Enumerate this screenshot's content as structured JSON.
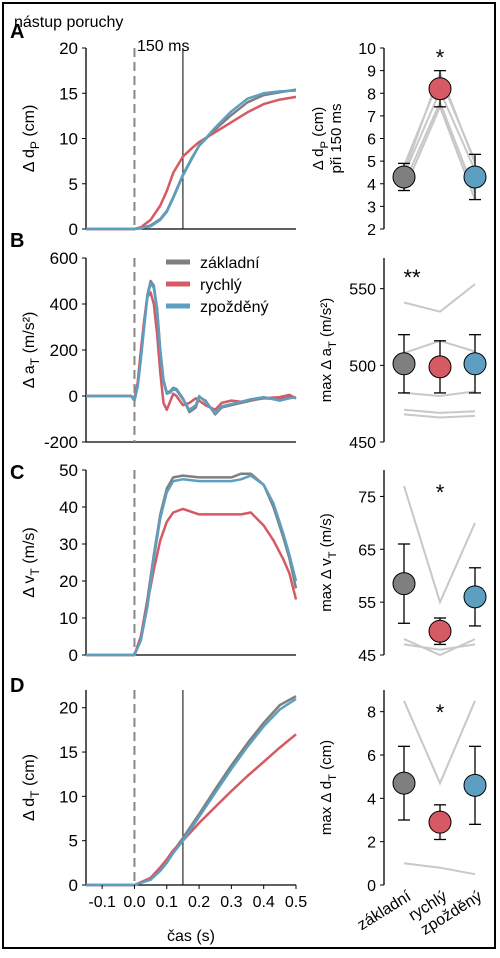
{
  "colors": {
    "zakladni": "#7f7f7f",
    "rychly": "#d55a63",
    "zpozdeny": "#5d9fc0",
    "gray_line": "#c8c8c8"
  },
  "annotations": {
    "onset": "nástup poruchy",
    "ms150": "150 ms",
    "xlabel": "čas (s)",
    "x_ticks": [
      "-0.1",
      "0.0",
      "0.1",
      "0.2",
      "0.3",
      "0.4",
      "0.5"
    ],
    "cond_labels": [
      "základní",
      "rychlý",
      "zpožděný"
    ]
  },
  "chart_data": [
    {
      "panel": "A",
      "type": "line",
      "ylabel": "Δ d",
      "ylabel_sub": "P",
      "ylabel_unit": " (cm)",
      "ylim": [
        0,
        20
      ],
      "y_ticks": [
        "0",
        "5",
        "10",
        "15",
        "20"
      ],
      "xlim": [
        -0.15,
        0.5
      ],
      "vline_dashed": 0.0,
      "vline_solid": 0.15,
      "series": [
        {
          "name": "základní",
          "color": "#7f7f7f",
          "x": [
            -0.15,
            0.0,
            0.02,
            0.05,
            0.08,
            0.1,
            0.12,
            0.15,
            0.18,
            0.2,
            0.25,
            0.3,
            0.35,
            0.4,
            0.45,
            0.5
          ],
          "y": [
            0,
            0,
            0.1,
            0.4,
            1.1,
            2.0,
            3.5,
            6.0,
            8.0,
            9.2,
            11.0,
            12.6,
            14.0,
            14.8,
            15.1,
            15.4
          ]
        },
        {
          "name": "rychlý",
          "color": "#d55a63",
          "x": [
            -0.15,
            0.0,
            0.02,
            0.05,
            0.08,
            0.1,
            0.12,
            0.15,
            0.18,
            0.2,
            0.25,
            0.3,
            0.35,
            0.4,
            0.45,
            0.5
          ],
          "y": [
            0,
            0,
            0.2,
            1.0,
            2.6,
            4.2,
            6.2,
            8.0,
            9.0,
            9.6,
            10.7,
            11.8,
            12.9,
            13.8,
            14.3,
            14.6
          ]
        },
        {
          "name": "zpožděný",
          "color": "#5d9fc0",
          "x": [
            -0.15,
            0.0,
            0.02,
            0.05,
            0.08,
            0.1,
            0.12,
            0.15,
            0.18,
            0.2,
            0.25,
            0.3,
            0.35,
            0.4,
            0.45,
            0.5
          ],
          "y": [
            0,
            0,
            0.1,
            0.3,
            1.0,
            1.9,
            3.4,
            5.9,
            7.9,
            9.2,
            11.2,
            13.0,
            14.4,
            15.0,
            15.2,
            15.3
          ]
        }
      ],
      "dot_ylabel": "Δ d",
      "dot_ylabel_sub": "P",
      "dot_ylabel_unit": " (cm)",
      "dot_ylabel2": "při 150 ms",
      "dot_ylim": [
        2,
        10
      ],
      "dot_ticks": [
        "2",
        "3",
        "4",
        "5",
        "6",
        "7",
        "8",
        "9",
        "10"
      ],
      "dot_means": [
        4.3,
        8.2,
        4.3
      ],
      "dot_errs": [
        0.6,
        0.8,
        1.0
      ],
      "dot_subjects": [
        [
          3.7,
          7.4,
          3.3
        ],
        [
          4.0,
          7.6,
          3.6
        ],
        [
          4.4,
          8.1,
          4.6
        ],
        [
          4.8,
          8.7,
          5.0
        ],
        [
          4.5,
          8.9,
          4.9
        ]
      ],
      "significance": "*"
    },
    {
      "panel": "B",
      "type": "line",
      "ylabel": "Δ a",
      "ylabel_sub": "T",
      "ylabel_unit": " (m/s²)",
      "ylim": [
        -200,
        600
      ],
      "y_ticks": [
        "-200",
        "0",
        "200",
        "400",
        "600"
      ],
      "xlim": [
        -0.15,
        0.5
      ],
      "vline_dashed": 0.0,
      "legend": "top-right",
      "series": [
        {
          "name": "základní",
          "color": "#7f7f7f",
          "x": [
            -0.15,
            -0.01,
            0.0,
            0.01,
            0.02,
            0.03,
            0.04,
            0.05,
            0.06,
            0.07,
            0.08,
            0.09,
            0.1,
            0.11,
            0.12,
            0.13,
            0.14,
            0.15,
            0.17,
            0.19,
            0.2,
            0.22,
            0.25,
            0.27,
            0.3,
            0.33,
            0.36,
            0.4,
            0.45,
            0.48,
            0.5
          ],
          "y": [
            0,
            0,
            -20,
            50,
            180,
            320,
            440,
            500,
            480,
            380,
            200,
            70,
            15,
            20,
            35,
            30,
            10,
            -10,
            -70,
            -50,
            -5,
            -20,
            -80,
            -50,
            -40,
            -30,
            -20,
            -10,
            -15,
            0,
            -10
          ]
        },
        {
          "name": "rychlý",
          "color": "#d55a63",
          "x": [
            -0.15,
            -0.01,
            0.0,
            0.01,
            0.02,
            0.03,
            0.04,
            0.05,
            0.06,
            0.07,
            0.08,
            0.09,
            0.1,
            0.11,
            0.12,
            0.13,
            0.14,
            0.15,
            0.17,
            0.19,
            0.2,
            0.22,
            0.25,
            0.27,
            0.3,
            0.33,
            0.36,
            0.4,
            0.45,
            0.48,
            0.5
          ],
          "y": [
            0,
            0,
            -10,
            60,
            200,
            330,
            430,
            450,
            400,
            270,
            100,
            -30,
            -60,
            -25,
            10,
            0,
            -20,
            -40,
            -30,
            -10,
            -20,
            -40,
            -60,
            -30,
            -20,
            -25,
            -15,
            -10,
            -5,
            5,
            -10
          ]
        },
        {
          "name": "zpožděný",
          "color": "#5d9fc0",
          "x": [
            -0.15,
            -0.01,
            0.0,
            0.01,
            0.02,
            0.03,
            0.04,
            0.05,
            0.06,
            0.07,
            0.08,
            0.09,
            0.1,
            0.11,
            0.12,
            0.13,
            0.14,
            0.15,
            0.17,
            0.19,
            0.2,
            0.22,
            0.25,
            0.27,
            0.3,
            0.33,
            0.36,
            0.4,
            0.45,
            0.48,
            0.5
          ],
          "y": [
            0,
            0,
            -20,
            40,
            160,
            300,
            430,
            490,
            470,
            370,
            190,
            60,
            10,
            15,
            30,
            25,
            5,
            -15,
            -60,
            -40,
            0,
            -25,
            -75,
            -45,
            -35,
            -25,
            -15,
            -5,
            -20,
            -10,
            -5
          ]
        }
      ],
      "dot_ylabel": "max Δ a",
      "dot_ylabel_sub": "T",
      "dot_ylabel_unit": " (m/s²)",
      "dot_ylabel2": "",
      "dot_ylim": [
        450,
        570
      ],
      "dot_ticks": [
        "450",
        "500",
        "550"
      ],
      "dot_means": [
        501,
        499,
        501
      ],
      "dot_errs": [
        19,
        17,
        19
      ],
      "dot_subjects": [
        [
          541,
          535,
          553
        ],
        [
          508,
          516,
          509
        ],
        [
          482,
          480,
          483
        ],
        [
          471,
          469,
          470
        ],
        [
          468,
          466,
          467
        ]
      ],
      "significance": "**"
    },
    {
      "panel": "C",
      "type": "line",
      "ylabel": "Δ v",
      "ylabel_sub": "T",
      "ylabel_unit": " (m/s)",
      "ylim": [
        0,
        50
      ],
      "y_ticks": [
        "0",
        "10",
        "20",
        "30",
        "40",
        "50"
      ],
      "xlim": [
        -0.15,
        0.5
      ],
      "vline_dashed": 0.0,
      "series": [
        {
          "name": "základní",
          "color": "#7f7f7f",
          "x": [
            -0.15,
            0.0,
            0.02,
            0.04,
            0.06,
            0.08,
            0.1,
            0.12,
            0.15,
            0.2,
            0.25,
            0.3,
            0.33,
            0.36,
            0.4,
            0.43,
            0.46,
            0.48,
            0.5
          ],
          "y": [
            0,
            0,
            5,
            15,
            27,
            38,
            45,
            48,
            48.5,
            48,
            48,
            48,
            49,
            49,
            46,
            40,
            32,
            26,
            18
          ]
        },
        {
          "name": "rychlý",
          "color": "#d55a63",
          "x": [
            -0.15,
            0.0,
            0.02,
            0.04,
            0.06,
            0.08,
            0.1,
            0.12,
            0.15,
            0.2,
            0.25,
            0.3,
            0.33,
            0.36,
            0.4,
            0.43,
            0.46,
            0.48,
            0.5
          ],
          "y": [
            0,
            0,
            5,
            14,
            23,
            31,
            36,
            38.5,
            39.5,
            38,
            38,
            38,
            38,
            38.5,
            35,
            31,
            26,
            22,
            15
          ]
        },
        {
          "name": "zpožděný",
          "color": "#5d9fc0",
          "x": [
            -0.15,
            0.0,
            0.02,
            0.04,
            0.06,
            0.08,
            0.1,
            0.12,
            0.15,
            0.2,
            0.25,
            0.3,
            0.33,
            0.36,
            0.4,
            0.43,
            0.46,
            0.48,
            0.5
          ],
          "y": [
            0,
            0,
            4,
            13,
            26,
            37,
            44,
            47,
            47.5,
            47,
            47,
            47,
            47.5,
            48.5,
            46,
            41,
            33,
            27,
            20
          ]
        }
      ],
      "dot_ylabel": "max Δ v",
      "dot_ylabel_sub": "T",
      "dot_ylabel_unit": " (m/s)",
      "dot_ylabel2": "",
      "dot_ylim": [
        45,
        80
      ],
      "dot_ticks": [
        "45",
        "55",
        "65",
        "75"
      ],
      "dot_means": [
        58.5,
        49.5,
        56
      ],
      "dot_errs": [
        7.5,
        2.5,
        5.5
      ],
      "dot_subjects": [
        [
          77,
          55,
          70
        ],
        [
          48,
          45,
          48
        ],
        [
          47,
          46,
          47
        ]
      ],
      "significance": "*"
    },
    {
      "panel": "D",
      "type": "line",
      "ylabel": "Δ d",
      "ylabel_sub": "T",
      "ylabel_unit": " (cm)",
      "ylim": [
        0,
        22
      ],
      "y_ticks": [
        "0",
        "5",
        "10",
        "15",
        "20"
      ],
      "xlim": [
        -0.15,
        0.5
      ],
      "vline_dashed": 0.0,
      "vline_solid": 0.15,
      "series": [
        {
          "name": "základní",
          "color": "#7f7f7f",
          "x": [
            -0.15,
            0.0,
            0.05,
            0.08,
            0.1,
            0.12,
            0.15,
            0.2,
            0.25,
            0.3,
            0.35,
            0.4,
            0.45,
            0.5
          ],
          "y": [
            0,
            0,
            0.7,
            1.8,
            2.7,
            3.8,
            5.3,
            8.0,
            10.8,
            13.5,
            16.0,
            18.3,
            20.3,
            21.3
          ]
        },
        {
          "name": "rychlý",
          "color": "#d55a63",
          "x": [
            -0.15,
            0.0,
            0.05,
            0.08,
            0.1,
            0.12,
            0.15,
            0.2,
            0.25,
            0.3,
            0.35,
            0.4,
            0.45,
            0.5
          ],
          "y": [
            0,
            0,
            0.8,
            2.0,
            2.9,
            3.9,
            5.0,
            7.0,
            8.8,
            10.6,
            12.3,
            13.9,
            15.5,
            17.0
          ]
        },
        {
          "name": "zpožděný",
          "color": "#5d9fc0",
          "x": [
            -0.15,
            0.0,
            0.05,
            0.08,
            0.1,
            0.12,
            0.15,
            0.2,
            0.25,
            0.3,
            0.35,
            0.4,
            0.45,
            0.5
          ],
          "y": [
            0,
            0,
            0.6,
            1.6,
            2.5,
            3.6,
            5.0,
            7.7,
            10.4,
            13.1,
            15.6,
            17.9,
            19.8,
            21.0
          ]
        }
      ],
      "dot_ylabel": "max Δ d",
      "dot_ylabel_sub": "T",
      "dot_ylabel_unit": " (cm)",
      "dot_ylabel2": "",
      "dot_ylim": [
        0,
        9
      ],
      "dot_ticks": [
        "0",
        "2",
        "4",
        "6",
        "8"
      ],
      "dot_means": [
        4.7,
        2.9,
        4.6
      ],
      "dot_errs": [
        1.7,
        0.8,
        1.8
      ],
      "dot_subjects": [
        [
          8.5,
          4.7,
          8.5
        ],
        [
          1.0,
          0.8,
          0.5
        ]
      ],
      "significance": "*"
    }
  ]
}
